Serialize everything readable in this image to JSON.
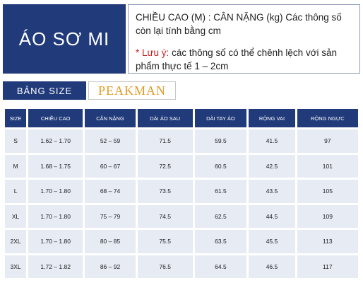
{
  "title": "ÁO SƠ MI",
  "note": {
    "line1": "CHIỀU CAO (M) : CÂN NẶNG (kg)  Các thông số còn lại tính bằng cm",
    "line2_star": "* Lưu ý:",
    "line2_text": " các thông số có thể chênh lệch với sản phẩm thực tế 1 – 2cm"
  },
  "size_label": "BẢNG SIZE",
  "brand": "PEAKMAN",
  "table": {
    "headers": [
      "SIZE",
      "CHIỀU CAO",
      "CÂN NẶNG",
      "DÀI ÁO SAU",
      "DÀI TAY ÁO",
      "RỘNG VAI",
      "RỘNG NGỰC"
    ],
    "rows": [
      [
        "S",
        "1.62 – 1.70",
        "52 – 59",
        "71.5",
        "59.5",
        "41.5",
        "97"
      ],
      [
        "M",
        "1.68 – 1.75",
        "60 – 67",
        "72.5",
        "60.5",
        "42.5",
        "101"
      ],
      [
        "L",
        "1.70 – 1.80",
        "68 – 74",
        "73.5",
        "61.5",
        "43.5",
        "105"
      ],
      [
        "XL",
        "1.70 – 1.80",
        "75 – 79",
        "74.5",
        "62.5",
        "44.5",
        "109"
      ],
      [
        "2XL",
        "1.70 – 1.80",
        "80 – 85",
        "75.5",
        "63.5",
        "45.5",
        "113"
      ],
      [
        "3XL",
        "1.72 – 1.82",
        "86 – 92",
        "76.5",
        "64.5",
        "46.5",
        "117"
      ]
    ]
  }
}
